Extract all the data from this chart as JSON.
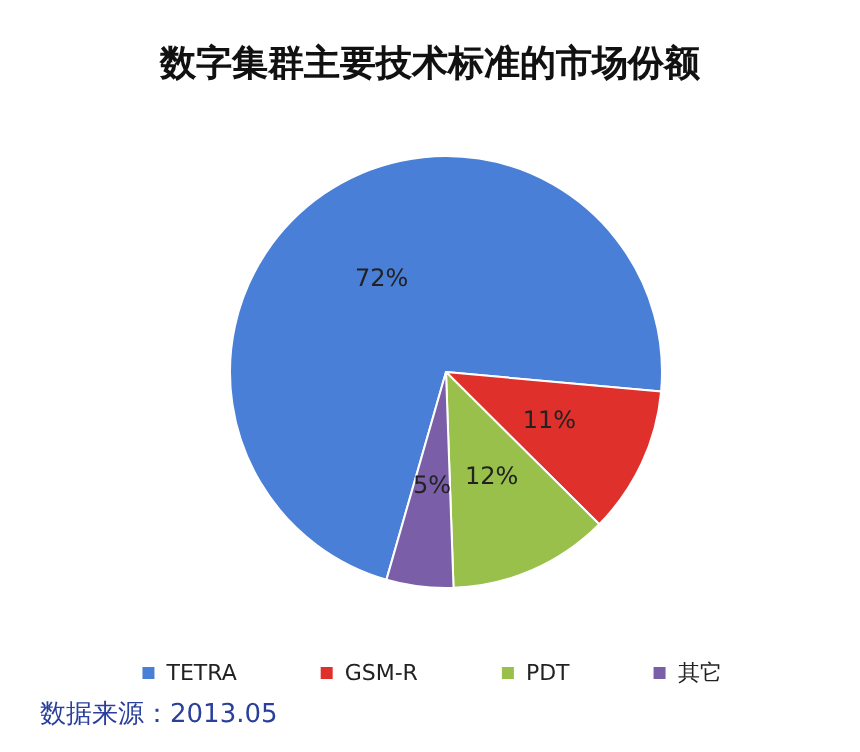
{
  "chart_data": {
    "type": "pie",
    "title": "数字集群主要技术标准的市场份额",
    "categories": [
      "TETRA",
      "GSM-R",
      "PDT",
      "其它"
    ],
    "values": [
      72,
      11,
      12,
      5
    ],
    "value_labels": [
      "72%",
      "11%",
      "12%",
      "5%"
    ],
    "colors": [
      "#4a7fd8",
      "#e0302c",
      "#98c04a",
      "#7a5fa8"
    ],
    "legend": "bottom",
    "annotations": [
      "数据来源：2013.05"
    ]
  }
}
